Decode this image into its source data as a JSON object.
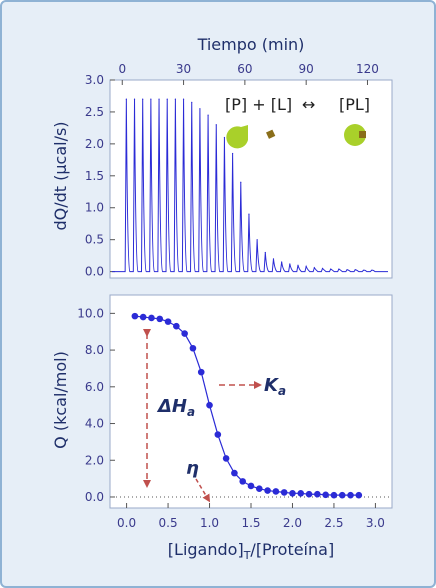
{
  "colors": {
    "series": "#2b2bd6",
    "arrow": "#c0504d",
    "frame": "#8fb2d4",
    "panel_bg": "#e6eef7",
    "axis_text": "#3a3a8c",
    "ligand": "#8a6e1a",
    "protein": "#a9d02a"
  },
  "chart_data": [
    {
      "type": "line",
      "top_axis_label": "Tiempo (min)",
      "ylabel": "dQ/dt (µcal/s)",
      "x_ticks": [
        "0",
        "30",
        "60",
        "90",
        "120"
      ],
      "y_ticks": [
        "0.0",
        "0.5",
        "1.0",
        "1.5",
        "2.0",
        "2.5",
        "3.0"
      ],
      "xlim": [
        -6,
        132
      ],
      "ylim": [
        -0.1,
        3.0
      ],
      "series": [
        {
          "injection_times": [
            2,
            6,
            10,
            14,
            18,
            22,
            26,
            30,
            34,
            38,
            42,
            46,
            50,
            54,
            58,
            62,
            66,
            70,
            74,
            78,
            82,
            86,
            90,
            94,
            98,
            102,
            106,
            110,
            114,
            118,
            122
          ],
          "peak_heights": [
            2.7,
            2.7,
            2.7,
            2.7,
            2.7,
            2.7,
            2.7,
            2.7,
            2.65,
            2.55,
            2.45,
            2.3,
            2.1,
            1.85,
            1.4,
            0.9,
            0.5,
            0.3,
            0.2,
            0.15,
            0.12,
            0.1,
            0.08,
            0.06,
            0.05,
            0.04,
            0.04,
            0.03,
            0.03,
            0.02,
            0.02
          ]
        }
      ],
      "equation": {
        "left": "[P] + [L]",
        "arrow": "↔",
        "right": "[PL]"
      }
    },
    {
      "type": "scatter",
      "xlabel": "[Ligando]",
      "xlabel_subscript": "T",
      "xlabel_suffix": "/[Proteína]",
      "ylabel": "Q (kcal/mol)",
      "x_ticks": [
        "0.0",
        "0.5",
        "1.0",
        "1.5",
        "2.0",
        "2.5",
        "3.0"
      ],
      "y_ticks": [
        "0.0",
        "2.0",
        "4.0",
        "6.0",
        "8.0",
        "10.0"
      ],
      "xlim": [
        -0.2,
        3.2
      ],
      "ylim": [
        -0.6,
        11.0
      ],
      "x": [
        0.1,
        0.2,
        0.3,
        0.4,
        0.5,
        0.6,
        0.7,
        0.8,
        0.9,
        1.0,
        1.1,
        1.2,
        1.3,
        1.4,
        1.5,
        1.6,
        1.7,
        1.8,
        1.9,
        2.0,
        2.1,
        2.2,
        2.3,
        2.4,
        2.5,
        2.6,
        2.7,
        2.8
      ],
      "y": [
        9.85,
        9.8,
        9.75,
        9.7,
        9.55,
        9.3,
        8.9,
        8.1,
        6.8,
        5.0,
        3.4,
        2.1,
        1.3,
        0.85,
        0.6,
        0.45,
        0.35,
        0.3,
        0.25,
        0.2,
        0.2,
        0.15,
        0.15,
        0.12,
        0.1,
        0.1,
        0.1,
        0.1
      ],
      "annotations": {
        "delta_h": "ΔH",
        "delta_h_sub": "a",
        "ka": "K",
        "ka_sub": "a",
        "eta": "η"
      }
    }
  ]
}
